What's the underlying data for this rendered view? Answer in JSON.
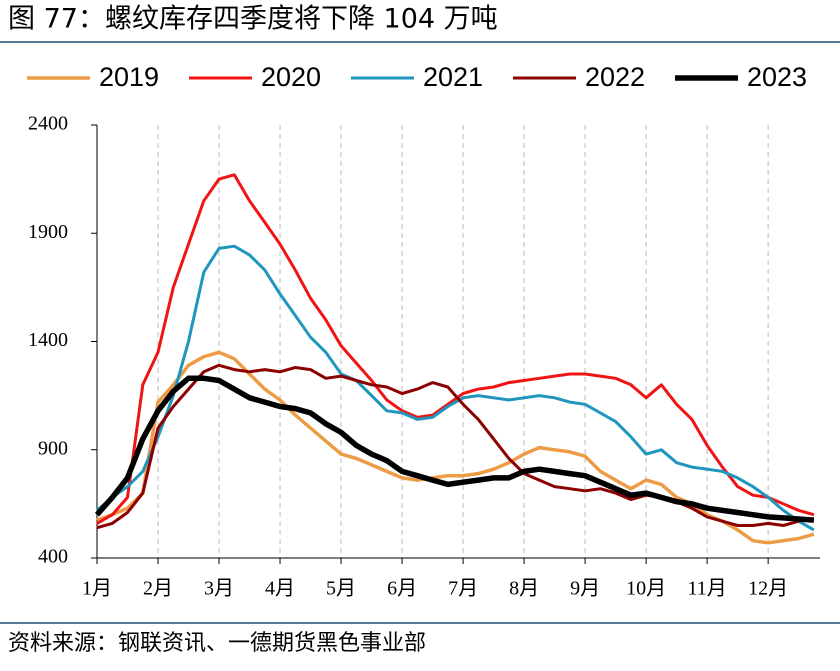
{
  "chart_data": {
    "type": "line",
    "title": "图 77：螺纹库存四季度将下降 104 万吨",
    "source": "资料来源：钢联资讯、一德期货黑色事业部",
    "x": [
      1,
      1.25,
      1.5,
      1.75,
      2,
      2.25,
      2.5,
      2.75,
      3,
      3.25,
      3.5,
      3.75,
      4,
      4.25,
      4.5,
      4.75,
      5,
      5.25,
      5.5,
      5.75,
      6,
      6.25,
      6.5,
      6.75,
      7,
      7.25,
      7.5,
      7.75,
      8,
      8.25,
      8.5,
      8.75,
      9,
      9.25,
      9.5,
      9.75,
      10,
      10.25,
      10.5,
      10.75,
      11,
      11.25,
      11.5,
      11.75,
      12,
      12.25,
      12.5,
      12.75
    ],
    "xlim": [
      1,
      12.85
    ],
    "xticks": [
      {
        "value": 1,
        "label": "1月"
      },
      {
        "value": 2,
        "label": "2月"
      },
      {
        "value": 3,
        "label": "3月"
      },
      {
        "value": 4,
        "label": "4月"
      },
      {
        "value": 5,
        "label": "5月"
      },
      {
        "value": 6,
        "label": "6月"
      },
      {
        "value": 7,
        "label": "7月"
      },
      {
        "value": 8,
        "label": "8月"
      },
      {
        "value": 9,
        "label": "9月"
      },
      {
        "value": 10,
        "label": "10月"
      },
      {
        "value": 11,
        "label": "11月"
      },
      {
        "value": 12,
        "label": "12月"
      }
    ],
    "ylim": [
      400,
      2400
    ],
    "yticks": [
      400,
      900,
      1400,
      1900,
      2400
    ],
    "grid": true,
    "series": [
      {
        "name": "2019",
        "color": "#ED9B45",
        "width": 3.5,
        "values": [
          575,
          600,
          630,
          700,
          1120,
          1200,
          1290,
          1330,
          1350,
          1320,
          1250,
          1180,
          1130,
          1060,
          1000,
          940,
          880,
          860,
          830,
          800,
          770,
          760,
          770,
          780,
          780,
          790,
          810,
          840,
          880,
          910,
          900,
          890,
          870,
          800,
          760,
          720,
          760,
          740,
          680,
          650,
          600,
          570,
          530,
          480,
          470,
          480,
          490,
          510
        ]
      },
      {
        "name": "2020",
        "color": "#F01414",
        "width": 3,
        "values": [
          560,
          600,
          680,
          1200,
          1350,
          1650,
          1850,
          2050,
          2150,
          2170,
          2050,
          1950,
          1850,
          1730,
          1600,
          1500,
          1380,
          1300,
          1220,
          1130,
          1080,
          1050,
          1060,
          1110,
          1160,
          1180,
          1190,
          1210,
          1220,
          1230,
          1240,
          1250,
          1250,
          1240,
          1230,
          1200,
          1140,
          1200,
          1110,
          1040,
          920,
          820,
          730,
          690,
          680,
          650,
          620,
          600
        ]
      },
      {
        "name": "2021",
        "color": "#1E96BE",
        "width": 3,
        "values": [
          620,
          680,
          730,
          800,
          960,
          1150,
          1400,
          1720,
          1830,
          1840,
          1800,
          1730,
          1620,
          1520,
          1420,
          1350,
          1250,
          1220,
          1150,
          1080,
          1070,
          1040,
          1050,
          1100,
          1140,
          1150,
          1140,
          1130,
          1140,
          1150,
          1140,
          1120,
          1110,
          1070,
          1030,
          960,
          880,
          900,
          840,
          820,
          810,
          800,
          770,
          730,
          680,
          620,
          570,
          530
        ]
      },
      {
        "name": "2022",
        "color": "#8B0000",
        "width": 3,
        "values": [
          540,
          560,
          610,
          700,
          1000,
          1100,
          1180,
          1260,
          1290,
          1270,
          1260,
          1270,
          1260,
          1280,
          1270,
          1230,
          1240,
          1220,
          1200,
          1190,
          1160,
          1180,
          1210,
          1190,
          1110,
          1040,
          950,
          860,
          790,
          760,
          730,
          720,
          710,
          720,
          700,
          670,
          690,
          680,
          660,
          630,
          590,
          570,
          550,
          550,
          560,
          550,
          570,
          580
        ]
      },
      {
        "name": "2023",
        "color": "#000000",
        "width": 5.5,
        "values": [
          600,
          680,
          770,
          950,
          1080,
          1170,
          1230,
          1230,
          1220,
          1180,
          1140,
          1120,
          1100,
          1090,
          1070,
          1020,
          980,
          920,
          880,
          850,
          800,
          780,
          760,
          740,
          750,
          760,
          770,
          770,
          800,
          810,
          800,
          790,
          780,
          750,
          720,
          690,
          700,
          680,
          660,
          650,
          630,
          620,
          610,
          600,
          590,
          585,
          580,
          575
        ]
      }
    ]
  }
}
